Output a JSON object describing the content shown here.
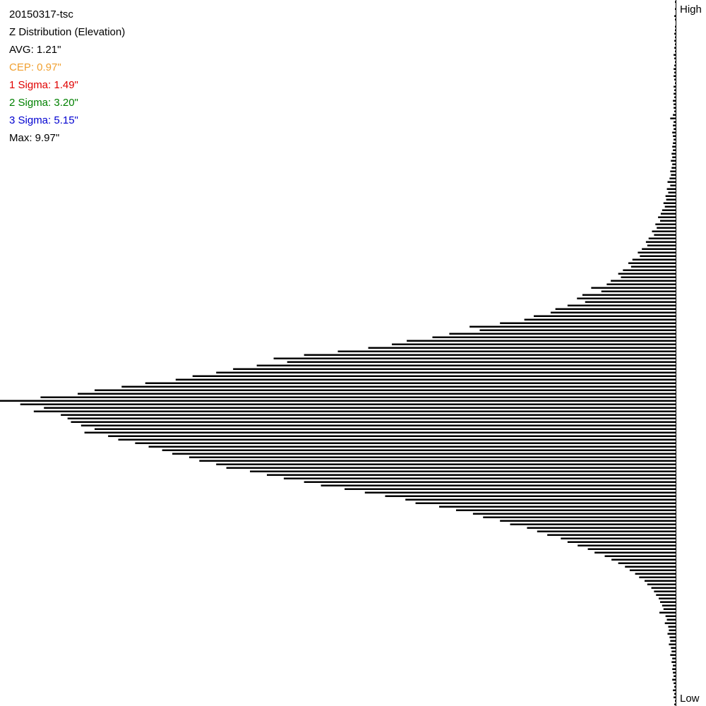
{
  "chart_data": {
    "type": "hbar",
    "title": "20150317-tsc",
    "subtitle": "Z Distribution (Elevation)",
    "stats": [
      {
        "label": "AVG: 1.21\"",
        "color": "#000000"
      },
      {
        "label": "CEP: 0.97\"",
        "color": "#f0a030"
      },
      {
        "label": "1 Sigma: 1.49\"",
        "color": "#e00000"
      },
      {
        "label": "2 Sigma: 3.20\"",
        "color": "#008000"
      },
      {
        "label": "3 Sigma: 5.15\"",
        "color": "#0000d0"
      },
      {
        "label": "Max: 9.97\"",
        "color": "#000000"
      }
    ],
    "y_top_label": "High",
    "y_bottom_label": "Low",
    "color": "#000000",
    "xlim": [
      0,
      100
    ],
    "values": [
      0.1,
      0,
      0.1,
      0,
      0.2,
      0.1,
      0,
      0.1,
      0.1,
      0.2,
      0.1,
      0.2,
      0.1,
      0.2,
      0.1,
      0.3,
      0.2,
      0.1,
      0.2,
      0.3,
      0.2,
      0.3,
      0.2,
      0.1,
      0.3,
      0.2,
      0.3,
      0.2,
      0.4,
      0.3,
      0.3,
      0.2,
      0.4,
      0.8,
      0.3,
      0.4,
      0.3,
      0.5,
      0.4,
      0.3,
      0.4,
      0.5,
      0.4,
      0.6,
      0.5,
      0.7,
      0.5,
      0.6,
      0.8,
      0.7,
      0.9,
      1.2,
      0.8,
      1.3,
      1.1,
      1.5,
      1.4,
      1.8,
      1.6,
      2.0,
      2.2,
      2.6,
      2.3,
      3.0,
      2.8,
      3.5,
      3.2,
      4.0,
      4.4,
      4.2,
      5.0,
      5.6,
      5.3,
      6.4,
      7.0,
      6.6,
      7.8,
      8.5,
      8.1,
      9.6,
      10.2,
      12.5,
      11.0,
      13.8,
      14.6,
      13.4,
      16.0,
      17.8,
      18.5,
      21.0,
      22.4,
      26.0,
      30.5,
      29.0,
      33.5,
      36.0,
      39.8,
      42.0,
      45.5,
      50.0,
      55.0,
      59.5,
      57.5,
      62.0,
      65.5,
      68.0,
      71.5,
      74.0,
      78.5,
      82.0,
      86.0,
      88.5,
      94.0,
      100,
      97.0,
      93.5,
      95.0,
      91.0,
      90.0,
      89.5,
      88.0,
      86.0,
      87.5,
      84.0,
      82.5,
      80.0,
      78.0,
      76.0,
      74.5,
      72.0,
      70.5,
      68.0,
      66.5,
      63.0,
      60.5,
      58.0,
      55.0,
      52.5,
      49.0,
      46.0,
      43.0,
      40.0,
      38.5,
      35.0,
      32.5,
      30.0,
      28.5,
      26.0,
      24.5,
      22.0,
      20.5,
      19.0,
      17.0,
      16.0,
      14.5,
      13.0,
      12.0,
      10.5,
      9.5,
      8.5,
      7.5,
      6.8,
      6.0,
      5.4,
      4.6,
      4.2,
      3.6,
      3.2,
      2.9,
      2.5,
      2.3,
      2.0,
      1.8,
      2.4,
      1.5,
      1.3,
      1.6,
      1.1,
      1.0,
      1.2,
      0.9,
      0.8,
      1.0,
      0.7,
      0.6,
      0.8,
      0.5,
      0.6,
      0.4,
      0.5,
      0.4,
      0.3,
      0.5,
      0.3,
      0.2,
      0.4,
      0.2,
      0.3,
      0.1,
      0.2
    ]
  }
}
